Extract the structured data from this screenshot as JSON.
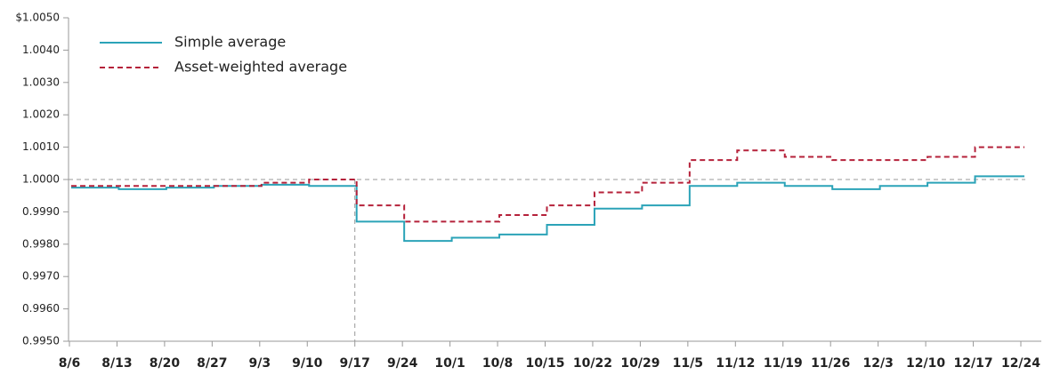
{
  "chart_data": {
    "type": "step",
    "categories": [
      "8/6",
      "8/13",
      "8/20",
      "8/27",
      "9/3",
      "9/10",
      "9/17",
      "9/24",
      "10/1",
      "10/8",
      "10/15",
      "10/22",
      "10/29",
      "11/5",
      "11/12",
      "11/19",
      "11/26",
      "12/3",
      "12/10",
      "12/17",
      "12/24"
    ],
    "series": [
      {
        "name": "Simple average",
        "color": "#2ba3b8",
        "dash": "solid",
        "values": [
          0.99975,
          0.9997,
          0.99975,
          0.9998,
          0.99984,
          0.9998,
          0.9987,
          0.9981,
          0.9982,
          0.9983,
          0.9986,
          0.9991,
          0.9992,
          0.9998,
          0.9999,
          0.9998,
          0.9997,
          0.9998,
          0.9999,
          1.0001,
          1.0001
        ]
      },
      {
        "name": "Asset-weighted average",
        "color": "#b5213a",
        "dash": "dashed",
        "values": [
          0.9998,
          0.9998,
          0.9998,
          0.9998,
          0.9999,
          1.0,
          0.9992,
          0.9987,
          0.9987,
          0.9989,
          0.9992,
          0.9996,
          0.9999,
          1.0006,
          1.0009,
          1.0007,
          1.0006,
          1.0006,
          1.0007,
          1.001,
          1.001
        ]
      }
    ],
    "ylim": [
      0.995,
      1.005
    ],
    "yticks": [
      {
        "value": 0.995,
        "label": "0.9950"
      },
      {
        "value": 0.996,
        "label": "0.9960"
      },
      {
        "value": 0.997,
        "label": "0.9970"
      },
      {
        "value": 0.998,
        "label": "0.9980"
      },
      {
        "value": 0.999,
        "label": "0.9990"
      },
      {
        "value": 1.0,
        "label": "1.0000"
      },
      {
        "value": 1.001,
        "label": "1.0010"
      },
      {
        "value": 1.002,
        "label": "1.0020"
      },
      {
        "value": 1.003,
        "label": "1.0030"
      },
      {
        "value": 1.004,
        "label": "1.0040"
      },
      {
        "value": 1.005,
        "label": "$1.0050"
      }
    ],
    "reference_lines": {
      "y": 1.0,
      "x": "9/17"
    },
    "legend": "top-left"
  }
}
